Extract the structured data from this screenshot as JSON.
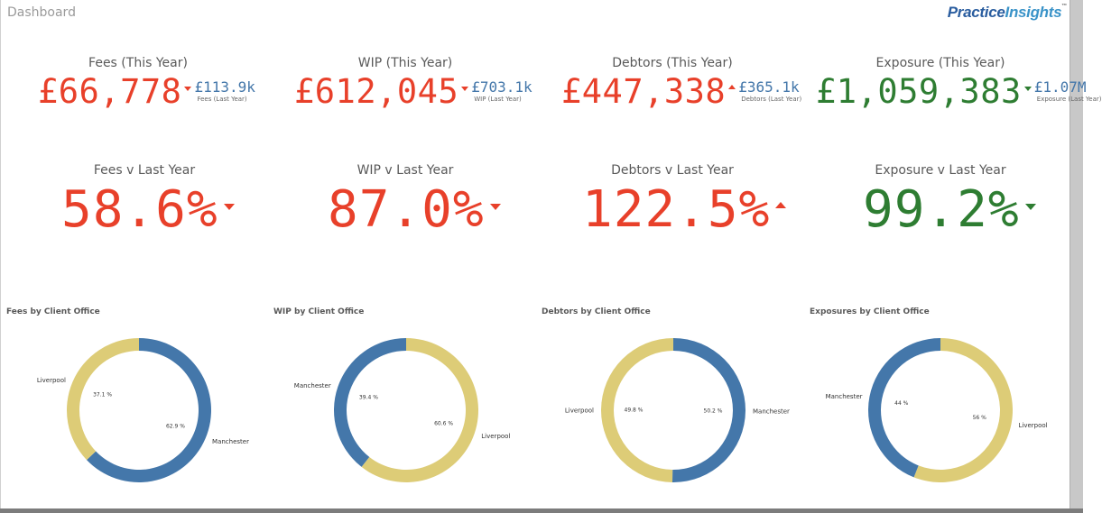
{
  "header": {
    "title": "Dashboard",
    "logo_part1": "Practice",
    "logo_part2": "Insights",
    "logo_tm": "™"
  },
  "colors": {
    "red": "#e8402a",
    "green": "#2e7d32",
    "blue_text": "#4477aa",
    "manchester": "#4477aa",
    "liverpool": "#ddcc77"
  },
  "kpis": [
    {
      "title": "Fees (This Year)",
      "value": "£66,778",
      "value_color": "red",
      "arrow": "down",
      "last_year_value": "£113.9k",
      "last_year_caption": "Fees (Last Year)"
    },
    {
      "title": "WIP (This Year)",
      "value": "£612,045",
      "value_color": "red",
      "arrow": "down",
      "last_year_value": "£703.1k",
      "last_year_caption": "WIP (Last Year)"
    },
    {
      "title": "Debtors (This Year)",
      "value": "£447,338",
      "value_color": "red",
      "arrow": "up",
      "last_year_value": "£365.1k",
      "last_year_caption": "Debtors (Last Year)"
    },
    {
      "title": "Exposure (This Year)",
      "value": "£1,059,383",
      "value_color": "green",
      "arrow": "down",
      "last_year_value": "£1.07M",
      "last_year_caption": "Exposure (Last Year)"
    }
  ],
  "comparisons": [
    {
      "title": "Fees v Last Year",
      "value": "58.6%",
      "value_color": "red",
      "arrow": "down"
    },
    {
      "title": "WIP v Last Year",
      "value": "87.0%",
      "value_color": "red",
      "arrow": "down"
    },
    {
      "title": "Debtors v Last Year",
      "value": "122.5%",
      "value_color": "red",
      "arrow": "up"
    },
    {
      "title": "Exposure v Last Year",
      "value": "99.2%",
      "value_color": "green",
      "arrow": "down"
    }
  ],
  "chart_data": [
    {
      "type": "pie",
      "donut": true,
      "title": "Fees by Client Office",
      "slices": [
        {
          "label": "Manchester",
          "value": 62.9,
          "pct_label": "62.9 %"
        },
        {
          "label": "Liverpool",
          "value": 37.1,
          "pct_label": "37.1 %"
        }
      ]
    },
    {
      "type": "pie",
      "donut": true,
      "title": "WIP by Client Office",
      "slices": [
        {
          "label": "Liverpool",
          "value": 60.6,
          "pct_label": "60.6 %"
        },
        {
          "label": "Manchester",
          "value": 39.4,
          "pct_label": "39.4 %"
        }
      ]
    },
    {
      "type": "pie",
      "donut": true,
      "title": "Debtors by Client Office",
      "slices": [
        {
          "label": "Manchester",
          "value": 50.2,
          "pct_label": "50.2 %"
        },
        {
          "label": "Liverpool",
          "value": 49.8,
          "pct_label": "49.8 %"
        }
      ]
    },
    {
      "type": "pie",
      "donut": true,
      "title": "Exposures by Client Office",
      "slices": [
        {
          "label": "Liverpool",
          "value": 56,
          "pct_label": "56 %"
        },
        {
          "label": "Manchester",
          "value": 44,
          "pct_label": "44 %"
        }
      ]
    }
  ]
}
